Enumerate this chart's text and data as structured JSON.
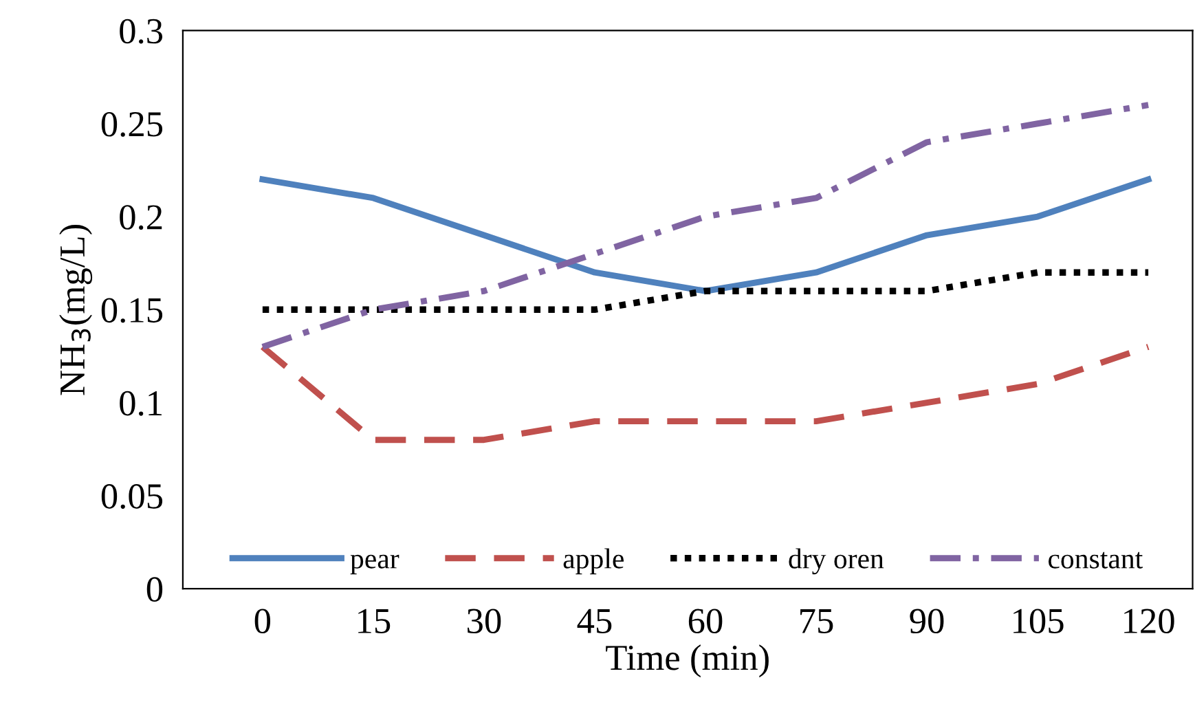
{
  "chart_data": {
    "type": "line",
    "xlabel": "Time (min)",
    "ylabel": "NH$_{3}$(mg/L)",
    "categories": [
      "0",
      "15",
      "30",
      "45",
      "60",
      "75",
      "90",
      "105",
      "120"
    ],
    "ylim": [
      0,
      0.3
    ],
    "yticks": [
      0,
      0.05,
      0.1,
      0.15,
      0.2,
      0.25,
      0.3
    ],
    "grid": false,
    "legend": "bottom",
    "marker": "none",
    "series": [
      {
        "name": "pear",
        "color": "#4f81bd",
        "line_style": "solid",
        "values": [
          0.22,
          0.21,
          0.19,
          0.17,
          0.16,
          0.17,
          0.19,
          0.2,
          0.22
        ]
      },
      {
        "name": "apple",
        "color": "#c0504d",
        "line_style": "dashed",
        "values": [
          0.13,
          0.08,
          0.08,
          0.09,
          0.09,
          0.09,
          0.1,
          0.11,
          0.13
        ]
      },
      {
        "name": "dry oren",
        "color": "#000000",
        "line_style": "dotted",
        "values": [
          0.15,
          0.15,
          0.15,
          0.15,
          0.16,
          0.16,
          0.16,
          0.17,
          0.17
        ]
      },
      {
        "name": "constant",
        "color": "#8064a2",
        "line_style": "dashdot",
        "values": [
          0.13,
          0.15,
          0.16,
          0.18,
          0.2,
          0.21,
          0.24,
          0.25,
          0.26
        ]
      }
    ]
  }
}
